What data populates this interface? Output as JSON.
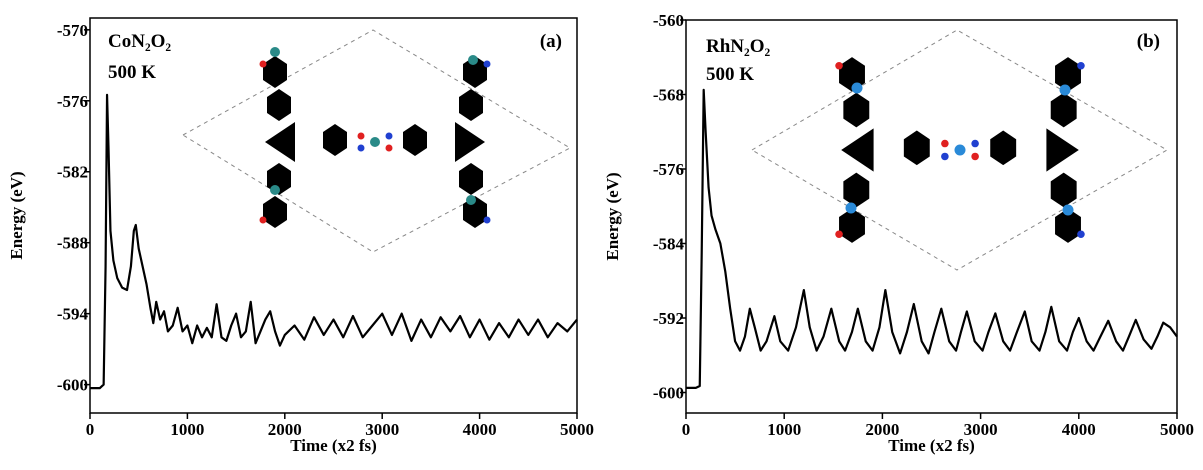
{
  "chart_data": [
    {
      "type": "line",
      "annotations": [
        "CoN₂O₂",
        "500 K",
        "(a)"
      ],
      "x_label": "Time (x2 fs)",
      "y_label": "Energy (eV)",
      "xlim": [
        0,
        5000
      ],
      "xticks": [
        0,
        1000,
        2000,
        3000,
        4000,
        5000
      ],
      "ylim": [
        -602.4,
        -569
      ],
      "yticks": [
        -600,
        -594,
        -588,
        -582,
        -576,
        -570
      ],
      "color": "#000000",
      "x": [
        0,
        100,
        140,
        160,
        175,
        190,
        210,
        240,
        280,
        330,
        380,
        420,
        450,
        470,
        500,
        540,
        580,
        620,
        650,
        680,
        720,
        760,
        800,
        850,
        900,
        950,
        1000,
        1050,
        1100,
        1150,
        1200,
        1250,
        1300,
        1350,
        1400,
        1450,
        1500,
        1550,
        1600,
        1650,
        1700,
        1750,
        1800,
        1850,
        1900,
        1950,
        2000,
        2100,
        2200,
        2300,
        2400,
        2500,
        2600,
        2700,
        2800,
        2900,
        3000,
        3100,
        3200,
        3300,
        3400,
        3500,
        3600,
        3700,
        3800,
        3900,
        4000,
        4100,
        4200,
        4300,
        4400,
        4500,
        4600,
        4700,
        4800,
        4900,
        5000
      ],
      "values": [
        -600.3,
        -600.3,
        -600,
        -590,
        -575.5,
        -580,
        -587,
        -589.5,
        -591,
        -591.8,
        -592,
        -590,
        -587,
        -586.5,
        -588.5,
        -590,
        -591.5,
        -593.5,
        -594.8,
        -593,
        -594.5,
        -593.8,
        -595.5,
        -595,
        -593.5,
        -595.5,
        -595,
        -596.5,
        -595,
        -596,
        -595.2,
        -596,
        -593.2,
        -596,
        -596.3,
        -595,
        -594,
        -596,
        -595.5,
        -593,
        -596.5,
        -595.5,
        -594.5,
        -593.8,
        -595.5,
        -596.7,
        -595.8,
        -595,
        -596.2,
        -594.3,
        -595.8,
        -594.5,
        -596,
        -594.2,
        -596,
        -595,
        -594,
        -595.8,
        -594,
        -596.3,
        -594.5,
        -596,
        -594.3,
        -595.5,
        -594.2,
        -596,
        -594.5,
        -596.2,
        -594.8,
        -596,
        -594.5,
        -595.8,
        -594.5,
        -596,
        -594.8,
        -595.5,
        -594.5
      ]
    },
    {
      "type": "line",
      "annotations": [
        "RhN₂O₂",
        "500 K",
        "(b)"
      ],
      "x_label": "Time (x2 fs)",
      "y_label": "Energy (eV)",
      "xlim": [
        0,
        5000
      ],
      "xticks": [
        0,
        1000,
        2000,
        3000,
        4000,
        5000
      ],
      "ylim": [
        -602.2,
        -560
      ],
      "yticks": [
        -600,
        -592,
        -584,
        -576,
        -568,
        -560
      ],
      "color": "#000000",
      "x": [
        0,
        100,
        140,
        160,
        180,
        200,
        230,
        260,
        300,
        350,
        400,
        450,
        500,
        550,
        600,
        650,
        700,
        760,
        820,
        900,
        960,
        1040,
        1120,
        1200,
        1260,
        1330,
        1400,
        1480,
        1560,
        1620,
        1690,
        1750,
        1830,
        1900,
        1970,
        2030,
        2100,
        2180,
        2250,
        2320,
        2400,
        2470,
        2530,
        2600,
        2680,
        2750,
        2800,
        2860,
        2940,
        3020,
        3080,
        3150,
        3230,
        3300,
        3370,
        3450,
        3520,
        3600,
        3660,
        3720,
        3800,
        3880,
        3940,
        4000,
        4080,
        4150,
        4220,
        4300,
        4380,
        4450,
        4510,
        4580,
        4660,
        4740,
        4800,
        4860,
        4930,
        5000
      ],
      "values": [
        -599.5,
        -599.5,
        -599.3,
        -585,
        -567.5,
        -572,
        -578,
        -581,
        -582.5,
        -584,
        -587,
        -591,
        -594.5,
        -595.5,
        -594,
        -591,
        -593,
        -595.5,
        -594.5,
        -591.8,
        -594.5,
        -595.5,
        -593,
        -589,
        -593,
        -595.5,
        -594,
        -591,
        -594.5,
        -595.5,
        -593.5,
        -591,
        -594.5,
        -595.5,
        -593,
        -589,
        -593.5,
        -595.8,
        -593.5,
        -590.5,
        -594.5,
        -595.8,
        -593.5,
        -591,
        -594.5,
        -595.5,
        -593.5,
        -591.3,
        -594.5,
        -595.5,
        -593.5,
        -591.5,
        -594.5,
        -595.5,
        -593.5,
        -591.3,
        -594.5,
        -595.5,
        -593.5,
        -590.8,
        -594.5,
        -595.5,
        -593.5,
        -592,
        -594.5,
        -595.5,
        -594,
        -592.3,
        -594.5,
        -595.5,
        -594,
        -592.2,
        -594.3,
        -595.3,
        -594,
        -592.5,
        -593,
        -594
      ]
    }
  ]
}
